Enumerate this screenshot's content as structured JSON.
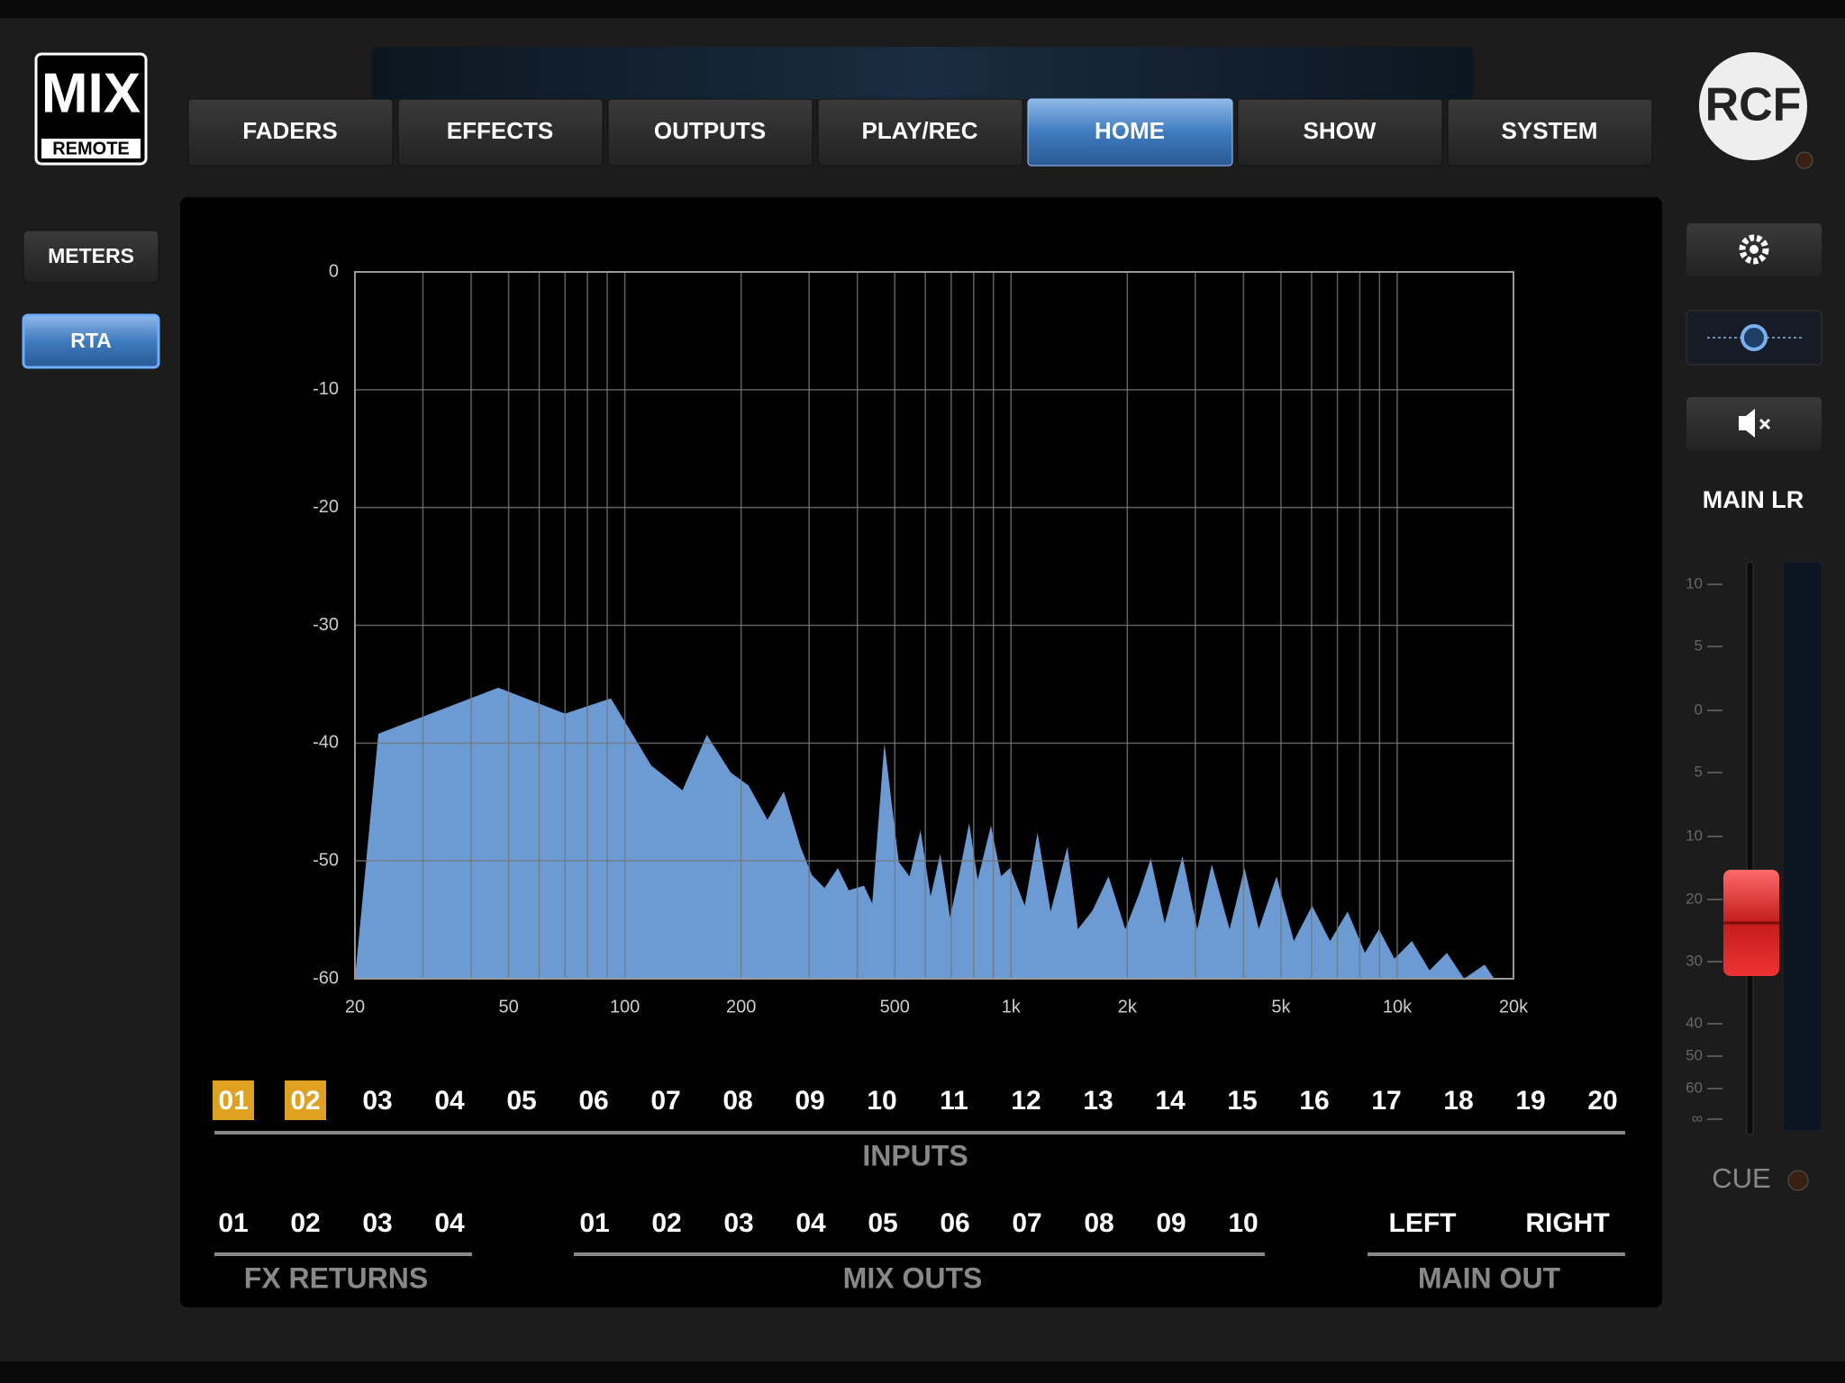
{
  "logo": {
    "title": "MIX",
    "subtitle": "REMOTE"
  },
  "brand": "RCF",
  "tabs": [
    {
      "label": "FADERS"
    },
    {
      "label": "EFFECTS"
    },
    {
      "label": "OUTPUTS"
    },
    {
      "label": "PLAY/REC"
    },
    {
      "label": "HOME",
      "active": true
    },
    {
      "label": "SHOW"
    },
    {
      "label": "SYSTEM"
    }
  ],
  "sidebar": [
    {
      "label": "METERS"
    },
    {
      "label": "RTA",
      "active": true
    }
  ],
  "right_panel": {
    "title": "MAIN LR",
    "scale": [
      "10",
      "5",
      "0",
      "5",
      "10",
      "20",
      "30",
      "40",
      "50",
      "60",
      "∞"
    ],
    "cue": "CUE"
  },
  "chart_data": {
    "type": "area",
    "log_x": true,
    "grid": true,
    "color": "#6b9bd2",
    "xlim": [
      20,
      20000
    ],
    "ylim": [
      -60,
      0
    ],
    "xticks": [
      20,
      50,
      100,
      200,
      500,
      {
        "value": 1000,
        "label": "1k"
      },
      {
        "value": 2000,
        "label": "2k"
      },
      {
        "value": 5000,
        "label": "5k"
      },
      {
        "value": 10000,
        "label": "10k"
      },
      {
        "value": 20000,
        "label": "20k"
      }
    ],
    "xgrid": [
      20,
      30,
      40,
      50,
      60,
      70,
      80,
      90,
      100,
      200,
      300,
      400,
      500,
      600,
      700,
      800,
      900,
      1000,
      2000,
      3000,
      4000,
      5000,
      6000,
      7000,
      8000,
      9000,
      10000,
      20000
    ],
    "yticks": [
      0,
      -10,
      -20,
      -30,
      -40,
      -50,
      -60
    ],
    "x": [
      20,
      23,
      47,
      70,
      92,
      117,
      141,
      163,
      188,
      209,
      234,
      258,
      285,
      305,
      329,
      356,
      380,
      416,
      437,
      470,
      512,
      546,
      583,
      619,
      656,
      695,
      735,
      779,
      820,
      887,
      942,
      994,
      1085,
      1171,
      1266,
      1400,
      1490,
      1626,
      1788,
      1976,
      2145,
      2300,
      2500,
      2780,
      3035,
      3310,
      3680,
      4025,
      4380,
      4870,
      5400,
      6020,
      6700,
      7440,
      8250,
      8970,
      9830,
      10920,
      12120,
      13450,
      14900,
      16840,
      17830
    ],
    "values": [
      -60,
      -39.2,
      -35.3,
      -37.5,
      -36.2,
      -41.9,
      -44,
      -39.3,
      -42.5,
      -43.6,
      -46.5,
      -44.1,
      -48.8,
      -51.2,
      -52.3,
      -50.6,
      -52.5,
      -52.1,
      -53.6,
      -40,
      -50.1,
      -51.3,
      -47.4,
      -53,
      -49.4,
      -54.8,
      -51,
      -46.8,
      -51.6,
      -47,
      -51.3,
      -50.6,
      -53.8,
      -47.6,
      -54.3,
      -48.8,
      -55.8,
      -54.2,
      -51.3,
      -55.8,
      -52.8,
      -49.8,
      -55.3,
      -49.6,
      -55.8,
      -50.3,
      -55.8,
      -50.6,
      -55.8,
      -51.3,
      -56.8,
      -53.8,
      -56.8,
      -54.3,
      -57.8,
      -55.8,
      -58.3,
      -56.8,
      -59.3,
      -57.8,
      -60,
      -58.8,
      -60
    ]
  },
  "inputs": {
    "title": "INPUTS",
    "channels": [
      {
        "label": "01",
        "selected": true
      },
      {
        "label": "02",
        "selected": true
      },
      {
        "label": "03"
      },
      {
        "label": "04"
      },
      {
        "label": "05"
      },
      {
        "label": "06"
      },
      {
        "label": "07"
      },
      {
        "label": "08"
      },
      {
        "label": "09"
      },
      {
        "label": "10"
      },
      {
        "label": "11"
      },
      {
        "label": "12"
      },
      {
        "label": "13"
      },
      {
        "label": "14"
      },
      {
        "label": "15"
      },
      {
        "label": "16"
      },
      {
        "label": "17"
      },
      {
        "label": "18"
      },
      {
        "label": "19"
      },
      {
        "label": "20"
      }
    ]
  },
  "fx_returns": {
    "title": "FX RETURNS",
    "channels": [
      "01",
      "02",
      "03",
      "04"
    ]
  },
  "mix_outs": {
    "title": "MIX OUTS",
    "channels": [
      "01",
      "02",
      "03",
      "04",
      "05",
      "06",
      "07",
      "08",
      "09",
      "10"
    ]
  },
  "main_out": {
    "title": "MAIN OUT",
    "channels": [
      "LEFT",
      "RIGHT"
    ]
  }
}
